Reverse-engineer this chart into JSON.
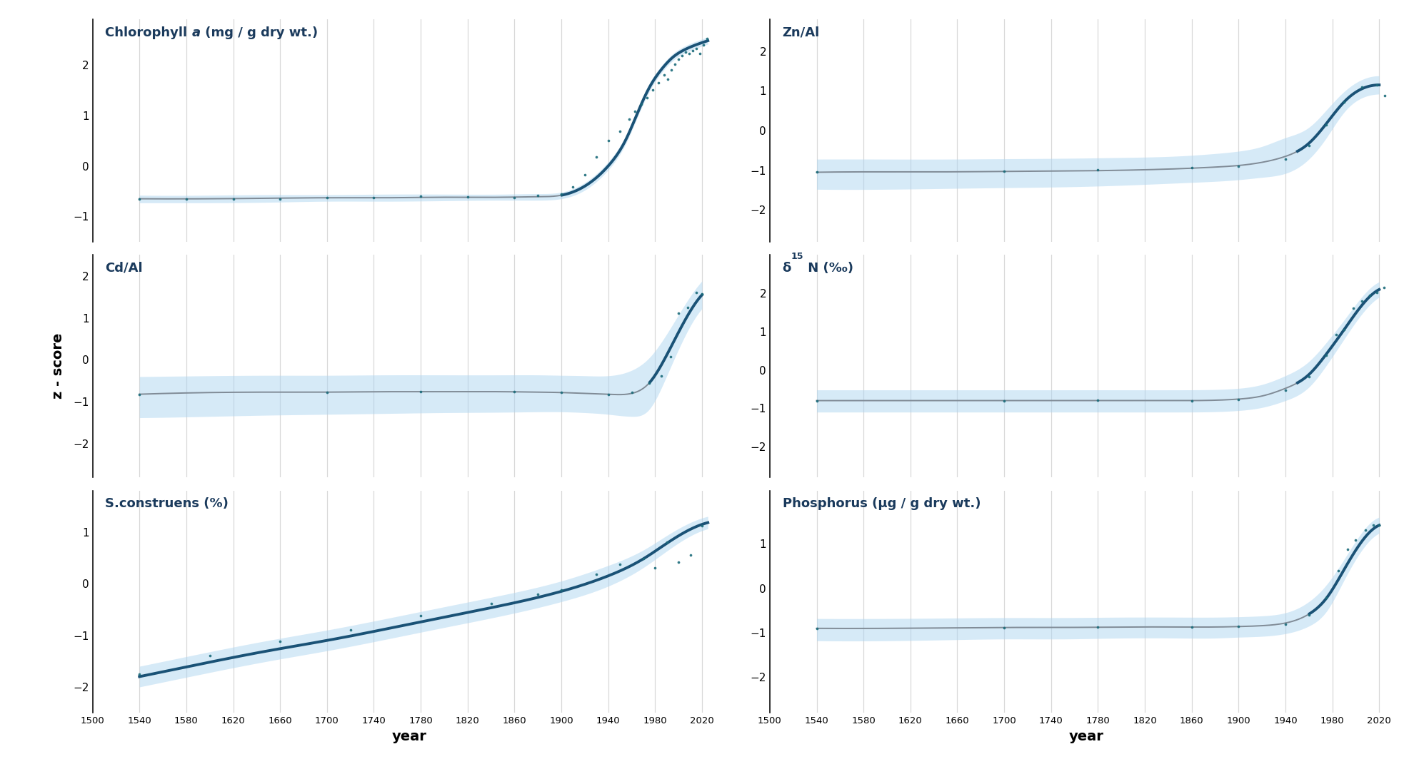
{
  "figure_bg": "#ffffff",
  "axes_bg": "#ffffff",
  "grid_color": "#d8d8d8",
  "xlim": [
    1500,
    2040
  ],
  "xticks": [
    1500,
    1540,
    1580,
    1620,
    1660,
    1700,
    1740,
    1780,
    1820,
    1860,
    1900,
    1940,
    1980,
    2020
  ],
  "xlabel": "year",
  "ylabel": "z - score",
  "line_color_significant": "#1a5276",
  "line_color_normal": "#808b96",
  "ci_color": "#aed6f1",
  "ci_alpha": 0.5,
  "dot_color": "#1a6b7a",
  "dot_size": 7,
  "panels": [
    {
      "title_parts": [
        {
          "text": "Chlorophyll ",
          "style": "bold"
        },
        {
          "text": "a",
          "style": "bolditalic"
        },
        {
          "text": " (mg / g dry wt.)",
          "style": "bold"
        }
      ],
      "title_color": "#1a3a5c",
      "ylim": [
        -1.5,
        2.9
      ],
      "yticks": [
        -1,
        0,
        1,
        2
      ],
      "gam_x": [
        1540,
        1600,
        1650,
        1700,
        1750,
        1800,
        1850,
        1880,
        1900,
        1920,
        1940,
        1955,
        1965,
        1975,
        1985,
        1995,
        2005,
        2015,
        2025
      ],
      "gam_y": [
        -0.65,
        -0.65,
        -0.64,
        -0.63,
        -0.63,
        -0.62,
        -0.62,
        -0.61,
        -0.58,
        -0.4,
        0.0,
        0.52,
        1.05,
        1.55,
        1.9,
        2.15,
        2.3,
        2.4,
        2.48
      ],
      "ci_upper": [
        -0.58,
        -0.58,
        -0.57,
        -0.57,
        -0.56,
        -0.56,
        -0.56,
        -0.55,
        -0.52,
        -0.33,
        0.08,
        0.6,
        1.13,
        1.63,
        1.97,
        2.22,
        2.37,
        2.47,
        2.55
      ],
      "ci_lower": [
        -0.73,
        -0.73,
        -0.72,
        -0.7,
        -0.7,
        -0.69,
        -0.68,
        -0.68,
        -0.65,
        -0.48,
        -0.08,
        0.44,
        0.97,
        1.47,
        1.83,
        2.08,
        2.23,
        2.33,
        2.41
      ],
      "significant_start": 1900,
      "dots_x": [
        1540,
        1580,
        1620,
        1660,
        1700,
        1740,
        1780,
        1820,
        1860,
        1880,
        1900,
        1910,
        1920,
        1930,
        1940,
        1950,
        1958,
        1963,
        1968,
        1973,
        1978,
        1983,
        1988,
        1991,
        1994,
        1997,
        2000,
        2003,
        2006,
        2009,
        2012,
        2015,
        2018,
        2021,
        2024
      ],
      "dots_y": [
        -0.65,
        -0.66,
        -0.66,
        -0.65,
        -0.62,
        -0.62,
        -0.6,
        -0.61,
        -0.62,
        -0.59,
        -0.55,
        -0.42,
        -0.18,
        0.18,
        0.5,
        0.68,
        0.92,
        1.08,
        1.22,
        1.35,
        1.5,
        1.65,
        1.8,
        1.72,
        1.9,
        2.02,
        2.12,
        2.18,
        2.25,
        2.22,
        2.28,
        2.32,
        2.22,
        2.4,
        2.52
      ]
    },
    {
      "title_parts": [
        {
          "text": "Zn/Al",
          "style": "bold"
        }
      ],
      "title_color": "#1a3a5c",
      "ylim": [
        -2.8,
        2.8
      ],
      "yticks": [
        -2,
        -1,
        0,
        1,
        2
      ],
      "gam_x": [
        1540,
        1600,
        1650,
        1700,
        1750,
        1800,
        1850,
        1880,
        1900,
        1920,
        1940,
        1960,
        1975,
        1990,
        2005,
        2020
      ],
      "gam_y": [
        -1.05,
        -1.04,
        -1.04,
        -1.03,
        -1.02,
        -1.0,
        -0.96,
        -0.92,
        -0.88,
        -0.8,
        -0.65,
        -0.32,
        0.18,
        0.72,
        1.05,
        1.15
      ],
      "ci_upper": [
        -0.72,
        -0.72,
        -0.72,
        -0.71,
        -0.7,
        -0.68,
        -0.64,
        -0.58,
        -0.52,
        -0.4,
        -0.18,
        0.08,
        0.52,
        0.98,
        1.28,
        1.38
      ],
      "ci_lower": [
        -1.48,
        -1.48,
        -1.46,
        -1.44,
        -1.42,
        -1.38,
        -1.32,
        -1.28,
        -1.24,
        -1.18,
        -1.08,
        -0.72,
        -0.18,
        0.46,
        0.82,
        0.92
      ],
      "significant_start": 1950,
      "dots_x": [
        1540,
        1700,
        1780,
        1860,
        1900,
        1940,
        1960,
        1975,
        1990,
        2005,
        2018,
        2025
      ],
      "dots_y": [
        -1.04,
        -1.02,
        -0.99,
        -0.94,
        -0.9,
        -0.72,
        -0.38,
        0.15,
        0.72,
        1.1,
        1.15,
        0.88
      ]
    },
    {
      "title_parts": [
        {
          "text": "Cd/Al",
          "style": "bold"
        }
      ],
      "title_color": "#1a3a5c",
      "ylim": [
        -2.8,
        2.5
      ],
      "yticks": [
        -2,
        -1,
        0,
        1,
        2
      ],
      "gam_x": [
        1540,
        1600,
        1650,
        1700,
        1750,
        1800,
        1850,
        1880,
        1900,
        1920,
        1940,
        1960,
        1975,
        1990,
        2005,
        2020
      ],
      "gam_y": [
        -0.82,
        -0.78,
        -0.77,
        -0.77,
        -0.76,
        -0.76,
        -0.76,
        -0.77,
        -0.78,
        -0.8,
        -0.82,
        -0.8,
        -0.55,
        0.12,
        0.92,
        1.55
      ],
      "ci_upper": [
        -0.4,
        -0.38,
        -0.37,
        -0.37,
        -0.36,
        -0.36,
        -0.36,
        -0.36,
        -0.37,
        -0.38,
        -0.38,
        -0.25,
        0.05,
        0.62,
        1.3,
        1.88
      ],
      "ci_lower": [
        -1.38,
        -1.35,
        -1.32,
        -1.3,
        -1.28,
        -1.26,
        -1.25,
        -1.24,
        -1.24,
        -1.26,
        -1.3,
        -1.35,
        -1.18,
        -0.38,
        0.54,
        1.22
      ],
      "significant_start": 1975,
      "dots_x": [
        1540,
        1700,
        1780,
        1860,
        1900,
        1940,
        1960,
        1975,
        1985,
        1993,
        2000,
        2008,
        2015,
        2020
      ],
      "dots_y": [
        -0.82,
        -0.77,
        -0.76,
        -0.76,
        -0.78,
        -0.82,
        -0.78,
        -0.55,
        -0.38,
        0.08,
        1.12,
        1.25,
        1.6,
        1.58
      ]
    },
    {
      "title_parts": [
        {
          "text": "δ",
          "style": "bold"
        },
        {
          "text": "15",
          "style": "bold_superscript"
        },
        {
          "text": " N (‰)",
          "style": "bold"
        }
      ],
      "title_color": "#1a3a5c",
      "ylim": [
        -2.8,
        3.0
      ],
      "yticks": [
        -2,
        -1,
        0,
        1,
        2
      ],
      "gam_x": [
        1540,
        1600,
        1650,
        1700,
        1750,
        1800,
        1850,
        1880,
        1900,
        1920,
        1940,
        1960,
        1975,
        1990,
        2005,
        2020
      ],
      "gam_y": [
        -0.8,
        -0.8,
        -0.8,
        -0.8,
        -0.8,
        -0.8,
        -0.8,
        -0.79,
        -0.76,
        -0.68,
        -0.48,
        -0.12,
        0.42,
        1.05,
        1.68,
        2.1
      ],
      "ci_upper": [
        -0.52,
        -0.52,
        -0.52,
        -0.52,
        -0.52,
        -0.52,
        -0.52,
        -0.51,
        -0.48,
        -0.38,
        -0.15,
        0.22,
        0.72,
        1.3,
        1.9,
        2.3
      ],
      "ci_lower": [
        -1.1,
        -1.1,
        -1.1,
        -1.1,
        -1.1,
        -1.1,
        -1.1,
        -1.09,
        -1.06,
        -0.98,
        -0.8,
        -0.45,
        0.12,
        0.8,
        1.45,
        1.9
      ],
      "significant_start": 1950,
      "dots_x": [
        1540,
        1700,
        1780,
        1860,
        1900,
        1940,
        1960,
        1975,
        1983,
        1990,
        1998,
        2005,
        2012,
        2018,
        2024
      ],
      "dots_y": [
        -0.8,
        -0.8,
        -0.79,
        -0.8,
        -0.77,
        -0.52,
        -0.18,
        0.38,
        0.92,
        1.05,
        1.62,
        1.8,
        1.95,
        2.02,
        2.15
      ]
    },
    {
      "title_parts": [
        {
          "text": "S.construens (%)",
          "style": "bold"
        }
      ],
      "title_color": "#1a3a5c",
      "ylim": [
        -2.5,
        1.8
      ],
      "yticks": [
        -2,
        -1,
        0,
        1
      ],
      "gam_x": [
        1540,
        1600,
        1650,
        1700,
        1750,
        1800,
        1850,
        1900,
        1940,
        1970,
        1990,
        2010,
        2025
      ],
      "gam_y": [
        -1.8,
        -1.52,
        -1.3,
        -1.1,
        -0.88,
        -0.65,
        -0.42,
        -0.15,
        0.15,
        0.48,
        0.78,
        1.05,
        1.18
      ],
      "ci_upper": [
        -1.6,
        -1.32,
        -1.1,
        -0.9,
        -0.68,
        -0.45,
        -0.22,
        0.05,
        0.35,
        0.65,
        0.93,
        1.18,
        1.3
      ],
      "ci_lower": [
        -2.0,
        -1.72,
        -1.5,
        -1.3,
        -1.08,
        -0.85,
        -0.62,
        -0.35,
        -0.05,
        0.31,
        0.63,
        0.92,
        1.06
      ],
      "significant_start": 1540,
      "dots_x": [
        1540,
        1600,
        1660,
        1720,
        1780,
        1840,
        1880,
        1900,
        1930,
        1950,
        1970,
        1980,
        1990,
        2000,
        2010,
        2020
      ],
      "dots_y": [
        -1.75,
        -1.4,
        -1.12,
        -0.9,
        -0.62,
        -0.38,
        -0.2,
        -0.12,
        0.18,
        0.38,
        0.48,
        0.3,
        0.8,
        0.42,
        0.55,
        1.12
      ]
    },
    {
      "title_parts": [
        {
          "text": "Phosphorus (µg / g dry wt.)",
          "style": "bold"
        }
      ],
      "title_color": "#1a3a5c",
      "ylim": [
        -2.8,
        2.2
      ],
      "yticks": [
        -2,
        -1,
        0,
        1
      ],
      "gam_x": [
        1540,
        1600,
        1650,
        1700,
        1750,
        1800,
        1850,
        1880,
        1900,
        1920,
        1940,
        1960,
        1975,
        1990,
        2005,
        2020
      ],
      "gam_y": [
        -0.9,
        -0.9,
        -0.89,
        -0.88,
        -0.88,
        -0.87,
        -0.87,
        -0.87,
        -0.86,
        -0.84,
        -0.78,
        -0.58,
        -0.22,
        0.42,
        1.05,
        1.42
      ],
      "ci_upper": [
        -0.68,
        -0.68,
        -0.67,
        -0.66,
        -0.66,
        -0.65,
        -0.65,
        -0.65,
        -0.64,
        -0.62,
        -0.55,
        -0.3,
        0.08,
        0.65,
        1.25,
        1.6
      ],
      "ci_lower": [
        -1.18,
        -1.18,
        -1.16,
        -1.14,
        -1.14,
        -1.12,
        -1.12,
        -1.12,
        -1.1,
        -1.08,
        -1.02,
        -0.85,
        -0.52,
        0.18,
        0.85,
        1.24
      ],
      "significant_start": 1960,
      "dots_x": [
        1540,
        1700,
        1780,
        1860,
        1900,
        1940,
        1960,
        1975,
        1985,
        1993,
        2000,
        2008,
        2015,
        2020
      ],
      "dots_y": [
        -0.9,
        -0.88,
        -0.87,
        -0.87,
        -0.86,
        -0.8,
        -0.6,
        -0.22,
        0.4,
        0.88,
        1.08,
        1.32,
        1.42,
        1.42
      ]
    }
  ]
}
